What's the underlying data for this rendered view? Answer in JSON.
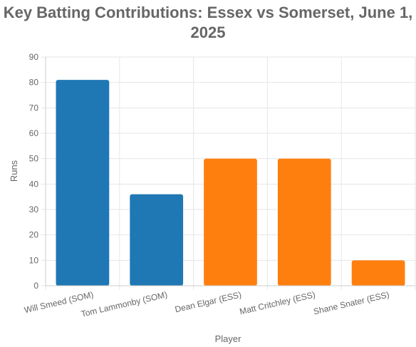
{
  "chart_data": {
    "type": "bar",
    "title": "Key Batting Contributions: Essex vs Somerset, June 1, 2025",
    "xlabel": "Player",
    "ylabel": "Runs",
    "ylim": [
      0,
      90
    ],
    "yticks": [
      0,
      10,
      20,
      30,
      40,
      50,
      60,
      70,
      80,
      90
    ],
    "grid": true,
    "legend": "none",
    "categories": [
      "Will Smeed (SOM)",
      "Tom Lammonby (SOM)",
      "Dean Elgar (ESS)",
      "Matt Critchley (ESS)",
      "Shane Snater (ESS)"
    ],
    "values": [
      81,
      36,
      50,
      50,
      10
    ],
    "colors": [
      "#1f77b4",
      "#1f77b4",
      "#ff7f0e",
      "#ff7f0e",
      "#ff7f0e"
    ]
  },
  "style": {
    "grid_color": "#e6e6e6",
    "axis_color": "#cccccc",
    "text_color": "#666666"
  }
}
